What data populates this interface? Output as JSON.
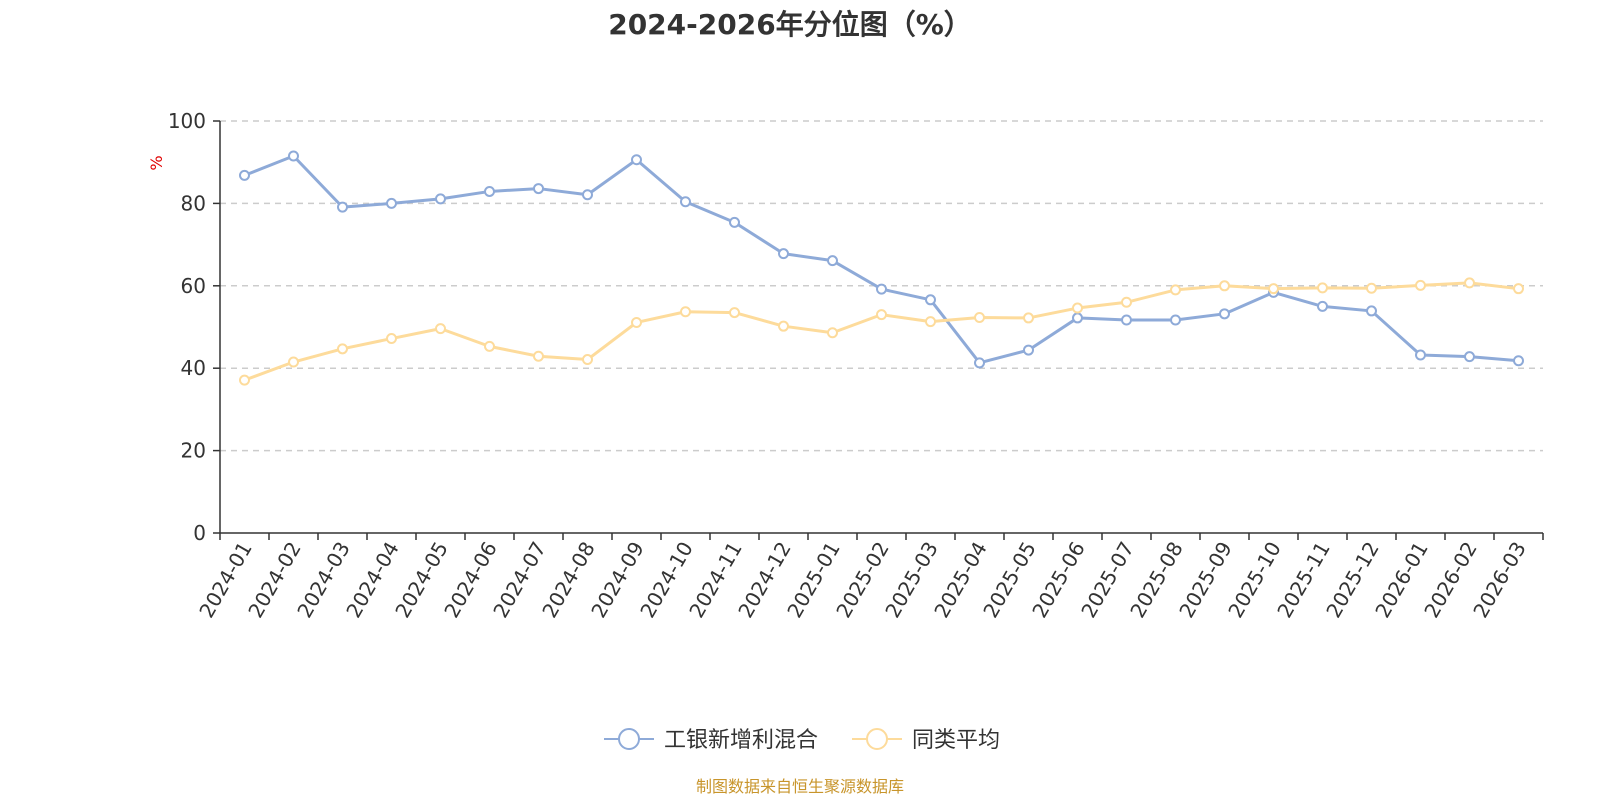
{
  "chart_data": {
    "type": "line",
    "title": "2024-2026年分位图（%）",
    "ylabel": "%",
    "ylim": [
      0,
      100
    ],
    "yticks": [
      0,
      20,
      40,
      60,
      80,
      100
    ],
    "grid": true,
    "legend_position": "bottom",
    "categories": [
      "2024-01",
      "2024-02",
      "2024-03",
      "2024-04",
      "2024-05",
      "2024-06",
      "2024-07",
      "2024-08",
      "2024-09",
      "2024-10",
      "2024-11",
      "2024-12",
      "2025-01",
      "2025-02",
      "2025-03",
      "2025-04",
      "2025-05",
      "2025-06",
      "2025-07",
      "2025-08",
      "2025-09",
      "2025-10",
      "2025-11",
      "2025-12",
      "2026-01",
      "2026-02",
      "2026-03"
    ],
    "series": [
      {
        "name": "工银新增利混合",
        "color": "#8eaad8",
        "values": [
          86.8,
          91.5,
          79.1,
          80.0,
          81.1,
          82.9,
          83.6,
          82.1,
          90.6,
          80.4,
          75.4,
          67.8,
          66.1,
          59.2,
          56.6,
          41.3,
          44.4,
          52.2,
          51.7,
          51.7,
          53.2,
          58.4,
          55.0,
          53.9,
          43.2,
          42.8,
          41.8
        ]
      },
      {
        "name": "同类平均",
        "color": "#fddb9b",
        "values": [
          37.1,
          41.5,
          44.7,
          47.2,
          49.6,
          45.3,
          42.9,
          42.1,
          51.1,
          53.7,
          53.5,
          50.2,
          48.6,
          53.0,
          51.3,
          52.3,
          52.2,
          54.6,
          56.0,
          59.0,
          60.0,
          59.3,
          59.5,
          59.4,
          60.1,
          60.7,
          59.3
        ]
      }
    ]
  },
  "footer": {
    "source": "制图数据来自恒生聚源数据库"
  }
}
